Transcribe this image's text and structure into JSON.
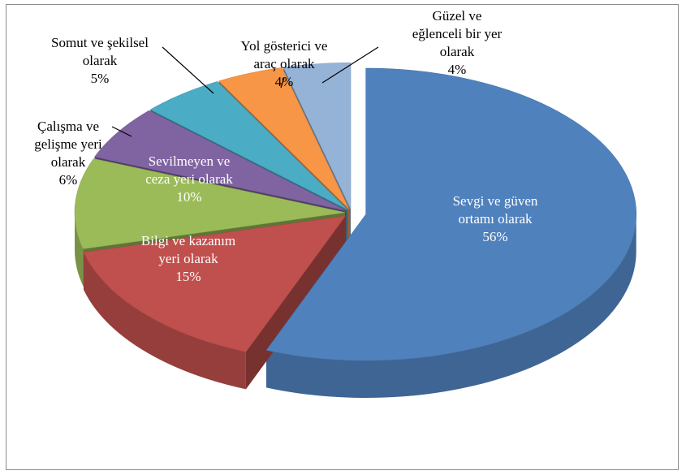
{
  "chart_data": {
    "type": "pie",
    "title": "",
    "categories": [
      "Sevgi ve güven ortamı olarak",
      "Bilgi ve kazanım yeri olarak",
      "Sevilmeyen ve ceza yeri olarak",
      "Çalışma ve gelişme yeri olarak",
      "Somut ve şekilsel olarak",
      "Yol gösterici ve araç olarak",
      "Güzel ve eğlenceli bir yer olarak"
    ],
    "values": [
      56,
      15,
      10,
      6,
      5,
      4,
      4
    ],
    "unit": "%",
    "colors": [
      "#4f81bd",
      "#c0504d",
      "#9bbb59",
      "#8064a2",
      "#4bacc6",
      "#f79646",
      "#95b3d7"
    ],
    "labels": [
      {
        "lines": [
          "Sevgi ve güven",
          "ortamı olarak",
          "56%"
        ],
        "placement": "inside"
      },
      {
        "lines": [
          "Bilgi ve kazanım",
          "yeri olarak",
          "15%"
        ],
        "placement": "inside"
      },
      {
        "lines": [
          "Sevilmeyen ve",
          "ceza yeri olarak",
          "10%"
        ],
        "placement": "inside"
      },
      {
        "lines": [
          "Çalışma ve",
          "gelişme yeri",
          "olarak",
          "6%"
        ],
        "placement": "outside"
      },
      {
        "lines": [
          "Somut ve şekilsel",
          "olarak",
          "5%"
        ],
        "placement": "outside"
      },
      {
        "lines": [
          "Yol gösterici ve",
          "araç olarak",
          "4%"
        ],
        "placement": "outside"
      },
      {
        "lines": [
          "Güzel ve",
          "eğlenceli bir yer",
          "olarak",
          "4%"
        ],
        "placement": "outside"
      }
    ],
    "style": "3d-exploded",
    "legend": "none"
  }
}
